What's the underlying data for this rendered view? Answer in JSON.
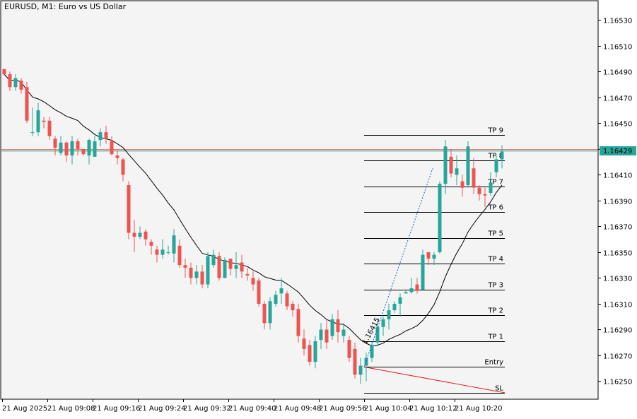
{
  "title": "EURUSD, M1:  Euro vs US Dollar",
  "price_badge": "1.16429",
  "colors": {
    "background": "#ffffff",
    "plot_bg": "#f4f4f4",
    "bull": "#26a69a",
    "bear": "#ef5350",
    "ma": "#000000",
    "price_line_green": "#26a69a",
    "price_line_red": "#ef5350",
    "badge": "#26a69a",
    "sl_line": "#e02020",
    "path": "#1565c0"
  },
  "levels": [
    {
      "label": "TP 9",
      "price": 1.16441
    },
    {
      "label": "TP 8",
      "price": 1.16421
    },
    {
      "label": "TP 7",
      "price": 1.16401
    },
    {
      "label": "TP 6",
      "price": 1.16381
    },
    {
      "label": "TP 5",
      "price": 1.16361
    },
    {
      "label": "TP 4",
      "price": 1.16341
    },
    {
      "label": "TP 3",
      "price": 1.16321
    },
    {
      "label": "TP 2",
      "price": 1.16301
    },
    {
      "label": "TP 1",
      "price": 1.16281
    },
    {
      "label": "Entry",
      "price": 1.16261
    },
    {
      "label": "SL",
      "price": 1.16241
    }
  ],
  "trade_annotation": "1.16415",
  "chart_data": {
    "type": "candlestick",
    "symbol": "EURUSD",
    "timeframe": "M1",
    "ylim": [
      1.16236,
      1.16545
    ],
    "y_ticks": [
      "1.16530",
      "1.16510",
      "1.16490",
      "1.16470",
      "1.16450",
      "1.16430",
      "1.16410",
      "1.16390",
      "1.16370",
      "1.16350",
      "1.16330",
      "1.16310",
      "1.16290",
      "1.16270",
      "1.16250"
    ],
    "x_ticks": [
      "21 Aug 2025",
      "21 Aug 09:08",
      "21 Aug 09:16",
      "21 Aug 09:24",
      "21 Aug 09:32",
      "21 Aug 09:40",
      "21 Aug 09:48",
      "21 Aug 09:56",
      "21 Aug 10:04",
      "21 Aug 10:12",
      "21 Aug 10:20"
    ],
    "candles": [
      [
        1.16492,
        1.16492,
        1.16487,
        1.16488
      ],
      [
        1.16488,
        1.1649,
        1.16475,
        1.16478
      ],
      [
        1.16478,
        1.16488,
        1.16475,
        1.16485
      ],
      [
        1.16483,
        1.16485,
        1.16473,
        1.16476
      ],
      [
        1.16478,
        1.16482,
        1.1645,
        1.16452
      ],
      [
        1.16443,
        1.16462,
        1.1644,
        1.16443
      ],
      [
        1.16443,
        1.16466,
        1.1644,
        1.1646
      ],
      [
        1.16452,
        1.16455,
        1.16446,
        1.16451
      ],
      [
        1.16452,
        1.16455,
        1.16437,
        1.1644
      ],
      [
        1.16438,
        1.1644,
        1.16425,
        1.16431
      ],
      [
        1.16427,
        1.1644,
        1.16425,
        1.16435
      ],
      [
        1.16435,
        1.16436,
        1.1642,
        1.16425
      ],
      [
        1.16425,
        1.1644,
        1.16418,
        1.16436
      ],
      [
        1.16436,
        1.16438,
        1.16425,
        1.1643
      ],
      [
        1.1643,
        1.1643,
        1.16425,
        1.16426
      ],
      [
        1.16425,
        1.16438,
        1.16418,
        1.16437
      ],
      [
        1.16424,
        1.1644,
        1.16424,
        1.16436
      ],
      [
        1.16437,
        1.16446,
        1.16432,
        1.16443
      ],
      [
        1.16443,
        1.16448,
        1.16434,
        1.16438
      ],
      [
        1.16436,
        1.1644,
        1.16425,
        1.16426
      ],
      [
        1.16425,
        1.1643,
        1.16418,
        1.16423
      ],
      [
        1.16422,
        1.16423,
        1.16405,
        1.1641
      ],
      [
        1.16402,
        1.16405,
        1.1636,
        1.16365
      ],
      [
        1.16365,
        1.16375,
        1.1635,
        1.16362
      ],
      [
        1.16362,
        1.1637,
        1.1636,
        1.16365
      ],
      [
        1.16366,
        1.16368,
        1.16355,
        1.1636
      ],
      [
        1.16358,
        1.1636,
        1.16348,
        1.16355
      ],
      [
        1.16352,
        1.16355,
        1.16342,
        1.16348
      ],
      [
        1.16348,
        1.1636,
        1.16345,
        1.16352
      ],
      [
        1.1635,
        1.16355,
        1.16348,
        1.1635
      ],
      [
        1.16349,
        1.16368,
        1.16342,
        1.16363
      ],
      [
        1.16355,
        1.1636,
        1.16338,
        1.1634
      ],
      [
        1.1634,
        1.16345,
        1.1633,
        1.16338
      ],
      [
        1.16338,
        1.16342,
        1.16325,
        1.1633
      ],
      [
        1.1633,
        1.1634,
        1.16325,
        1.16335
      ],
      [
        1.16335,
        1.1634,
        1.16322,
        1.16325
      ],
      [
        1.16325,
        1.1635,
        1.16322,
        1.16347
      ],
      [
        1.1634,
        1.16352,
        1.16338,
        1.16348
      ],
      [
        1.16347,
        1.1635,
        1.16328,
        1.1633
      ],
      [
        1.1633,
        1.16346,
        1.1633,
        1.16344
      ],
      [
        1.16345,
        1.16345,
        1.16332,
        1.16337
      ],
      [
        1.16337,
        1.1635,
        1.1633,
        1.1634
      ],
      [
        1.16342,
        1.16348,
        1.1633,
        1.16335
      ],
      [
        1.16333,
        1.16338,
        1.16328,
        1.16332
      ],
      [
        1.1633,
        1.16335,
        1.1632,
        1.16325
      ],
      [
        1.16328,
        1.1633,
        1.16308,
        1.1631
      ],
      [
        1.1631,
        1.16312,
        1.1629,
        1.16295
      ],
      [
        1.16295,
        1.16315,
        1.1629,
        1.16312
      ],
      [
        1.1631,
        1.1632,
        1.16308,
        1.16317
      ],
      [
        1.16318,
        1.1633,
        1.1631,
        1.16322
      ],
      [
        1.16318,
        1.1632,
        1.16305,
        1.16308
      ],
      [
        1.1631,
        1.16312,
        1.163,
        1.16305
      ],
      [
        1.16306,
        1.1631,
        1.1628,
        1.16285
      ],
      [
        1.16283,
        1.1629,
        1.1627,
        1.16275
      ],
      [
        1.16278,
        1.16282,
        1.16262,
        1.16265
      ],
      [
        1.16265,
        1.16285,
        1.1626,
        1.16281
      ],
      [
        1.16282,
        1.16295,
        1.16275,
        1.1629
      ],
      [
        1.1629,
        1.16298,
        1.16275,
        1.1628
      ],
      [
        1.16285,
        1.16302,
        1.16282,
        1.16298
      ],
      [
        1.16298,
        1.16305,
        1.1628,
        1.16288
      ],
      [
        1.16285,
        1.16295,
        1.1628,
        1.1629
      ],
      [
        1.16282,
        1.16285,
        1.16265,
        1.16268
      ],
      [
        1.16275,
        1.1628,
        1.16252,
        1.16255
      ],
      [
        1.16255,
        1.16268,
        1.16248,
        1.16262
      ],
      [
        1.16262,
        1.16272,
        1.1625,
        1.16268
      ],
      [
        1.16268,
        1.1628,
        1.16265,
        1.16278
      ],
      [
        1.1628,
        1.16298,
        1.16278,
        1.16292
      ],
      [
        1.16292,
        1.163,
        1.16285,
        1.16298
      ],
      [
        1.16298,
        1.1631,
        1.1629,
        1.16305
      ],
      [
        1.16305,
        1.16312,
        1.16303,
        1.1631
      ],
      [
        1.1631,
        1.16318,
        1.163,
        1.16315
      ],
      [
        1.16318,
        1.1632,
        1.16318,
        1.16319
      ],
      [
        1.16319,
        1.1633,
        1.16318,
        1.16322
      ],
      [
        1.16325,
        1.1633,
        1.16318,
        1.1632
      ],
      [
        1.16321,
        1.16352,
        1.16321,
        1.16348
      ],
      [
        1.1635,
        1.16348,
        1.1634,
        1.16345
      ],
      [
        1.16345,
        1.1635,
        1.1634,
        1.16348
      ],
      [
        1.1635,
        1.16405,
        1.16349,
        1.16403
      ],
      [
        1.16403,
        1.16437,
        1.16395,
        1.16432
      ],
      [
        1.16424,
        1.1643,
        1.16408,
        1.16411
      ],
      [
        1.1641,
        1.16425,
        1.16402,
        1.16415
      ],
      [
        1.16405,
        1.1641,
        1.16393,
        1.164
      ],
      [
        1.16402,
        1.16436,
        1.164,
        1.16432
      ],
      [
        1.16415,
        1.16423,
        1.16395,
        1.164
      ],
      [
        1.164,
        1.16402,
        1.1639,
        1.16395
      ],
      [
        1.16395,
        1.164,
        1.16385,
        1.16394
      ],
      [
        1.16396,
        1.16412,
        1.16394,
        1.16404
      ],
      [
        1.16412,
        1.16425,
        1.16408,
        1.16422
      ],
      [
        1.16422,
        1.16433,
        1.16415,
        1.16428
      ]
    ]
  }
}
